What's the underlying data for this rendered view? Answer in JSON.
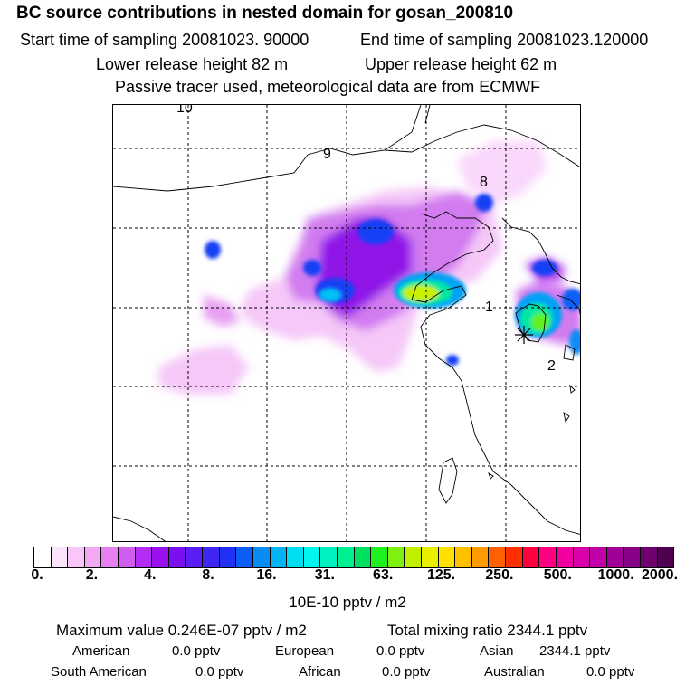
{
  "header": {
    "title": "BC  source contributions in nested domain for gosan_200810",
    "start_label": "Start time of sampling 20081023. 90000",
    "end_label": "End time of sampling 20081023.120000",
    "lower_label": "Lower release height   82 m",
    "upper_label": "Upper release height   62 m",
    "note": "Passive tracer used, meteorological data are from ECMWF"
  },
  "map": {
    "trajectory_labels": [
      "10",
      "9",
      "8",
      "1",
      "2"
    ],
    "site_marker": "star-icon"
  },
  "colorbar": {
    "colors": [
      "#ffffff",
      "#fde4fd",
      "#f9c6f9",
      "#f2a8f2",
      "#e87ff0",
      "#d05cf0",
      "#b52cf4",
      "#9a10f0",
      "#7a10f0",
      "#5b1df6",
      "#4026f2",
      "#2030f4",
      "#0a5ef5",
      "#0a8cf5",
      "#00b4f5",
      "#00dcf0",
      "#00f5f0",
      "#00f0c0",
      "#00f090",
      "#00e060",
      "#20f020",
      "#80f010",
      "#c0f000",
      "#e8f000",
      "#ffe000",
      "#ffc000",
      "#ff9a00",
      "#ff6000",
      "#ff3000",
      "#ff0040",
      "#ff0080",
      "#f000a0",
      "#d800a8",
      "#c000a8",
      "#a00098",
      "#880088",
      "#700070",
      "#500050"
    ],
    "tick_labels": [
      "0.",
      "2.",
      "4.",
      "8.",
      "16.",
      "31.",
      "63.",
      "125.",
      "250.",
      "500.",
      "1000.",
      "2000."
    ],
    "units": "10E-10 pptv / m2"
  },
  "stats": {
    "max_label": "Maximum value  0.246E-07 pptv / m2",
    "total_label": "Total mixing ratio     2344.1 pptv",
    "american_label": "American",
    "american_value": "0.0 pptv",
    "european_label": "European",
    "european_value": "0.0 pptv",
    "asian_label": "Asian",
    "asian_value": "2344.1 pptv",
    "south_american_label": "South American",
    "south_american_value": "0.0 pptv",
    "african_label": "African",
    "african_value": "0.0 pptv",
    "australian_label": "Australian",
    "australian_value": "0.0 pptv"
  }
}
